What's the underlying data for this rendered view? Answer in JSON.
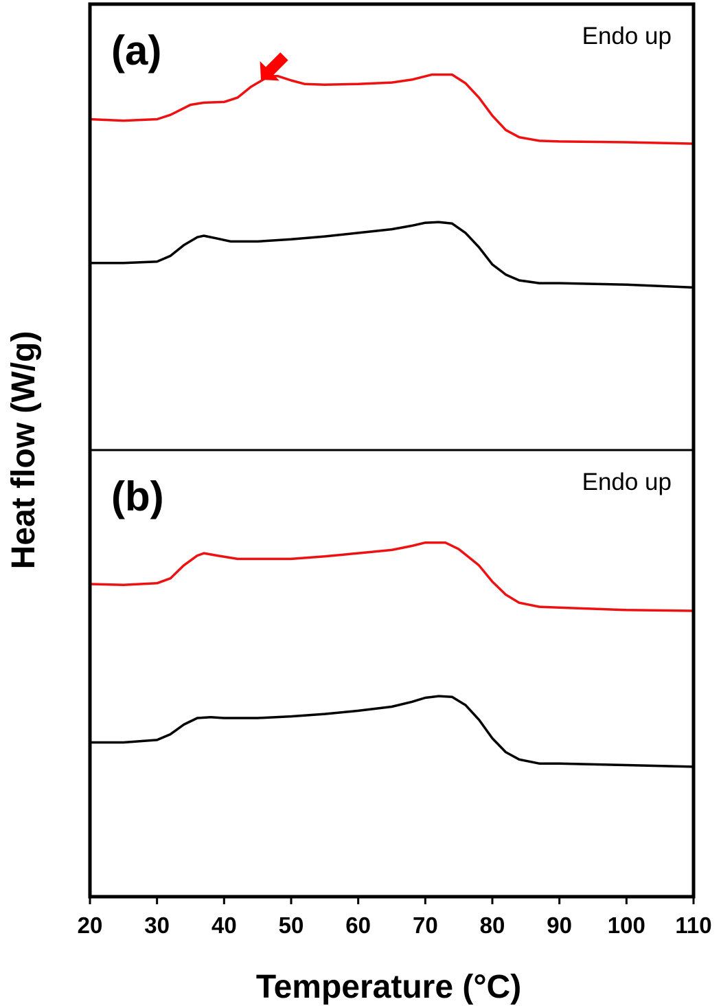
{
  "chart_data": {
    "type": "line",
    "xlabel": "Temperature (°C)",
    "ylabel": "Heat flow (W/g)",
    "xlim": [
      20,
      110
    ],
    "x_ticks": [
      20,
      30,
      40,
      50,
      60,
      70,
      80,
      90,
      100,
      110
    ],
    "grid": false,
    "y_tick_labels": false,
    "colors": {
      "red": "#ee1111",
      "black": "#000000",
      "arrow": "#ff0000"
    },
    "panels": [
      {
        "label": "(a)",
        "annotation": "Endo up",
        "ylim": [
          -2.6,
          3.6
        ],
        "arrow": {
          "x": 45.5,
          "y": 2.55
        },
        "series": [
          {
            "color": "red",
            "points": [
              [
                20,
                2.0
              ],
              [
                25,
                1.98
              ],
              [
                30,
                2.0
              ],
              [
                32,
                2.06
              ],
              [
                35,
                2.2
              ],
              [
                37,
                2.23
              ],
              [
                40,
                2.24
              ],
              [
                42,
                2.3
              ],
              [
                44,
                2.45
              ],
              [
                46,
                2.56
              ],
              [
                47,
                2.6
              ],
              [
                48,
                2.6
              ],
              [
                50,
                2.54
              ],
              [
                52,
                2.49
              ],
              [
                55,
                2.48
              ],
              [
                60,
                2.49
              ],
              [
                65,
                2.51
              ],
              [
                68,
                2.55
              ],
              [
                71,
                2.62
              ],
              [
                74,
                2.62
              ],
              [
                76,
                2.5
              ],
              [
                78,
                2.3
              ],
              [
                80,
                2.05
              ],
              [
                82,
                1.85
              ],
              [
                84,
                1.75
              ],
              [
                87,
                1.7
              ],
              [
                90,
                1.69
              ],
              [
                100,
                1.68
              ],
              [
                110,
                1.66
              ]
            ]
          },
          {
            "color": "black",
            "points": [
              [
                20,
                0.0
              ],
              [
                25,
                0.0
              ],
              [
                30,
                0.02
              ],
              [
                32,
                0.1
              ],
              [
                34,
                0.25
              ],
              [
                36,
                0.36
              ],
              [
                37,
                0.38
              ],
              [
                39,
                0.34
              ],
              [
                41,
                0.3
              ],
              [
                45,
                0.3
              ],
              [
                50,
                0.33
              ],
              [
                55,
                0.37
              ],
              [
                60,
                0.42
              ],
              [
                65,
                0.47
              ],
              [
                68,
                0.52
              ],
              [
                70,
                0.56
              ],
              [
                72,
                0.57
              ],
              [
                74,
                0.55
              ],
              [
                76,
                0.42
              ],
              [
                78,
                0.22
              ],
              [
                80,
                -0.02
              ],
              [
                82,
                -0.16
              ],
              [
                84,
                -0.24
              ],
              [
                87,
                -0.28
              ],
              [
                90,
                -0.28
              ],
              [
                100,
                -0.3
              ],
              [
                110,
                -0.34
              ]
            ]
          }
        ]
      },
      {
        "label": "(b)",
        "annotation": "Endo up",
        "ylim": [
          -1.9,
          3.6
        ],
        "series": [
          {
            "color": "red",
            "points": [
              [
                20,
                1.95
              ],
              [
                25,
                1.94
              ],
              [
                30,
                1.96
              ],
              [
                32,
                2.02
              ],
              [
                34,
                2.18
              ],
              [
                36,
                2.3
              ],
              [
                37,
                2.33
              ],
              [
                39,
                2.3
              ],
              [
                42,
                2.26
              ],
              [
                50,
                2.26
              ],
              [
                55,
                2.29
              ],
              [
                60,
                2.33
              ],
              [
                65,
                2.37
              ],
              [
                68,
                2.42
              ],
              [
                70,
                2.46
              ],
              [
                73,
                2.46
              ],
              [
                75,
                2.38
              ],
              [
                78,
                2.18
              ],
              [
                80,
                1.98
              ],
              [
                82,
                1.82
              ],
              [
                84,
                1.72
              ],
              [
                87,
                1.67
              ],
              [
                90,
                1.66
              ],
              [
                100,
                1.63
              ],
              [
                110,
                1.62
              ]
            ]
          },
          {
            "color": "black",
            "points": [
              [
                20,
                0.0
              ],
              [
                25,
                0.0
              ],
              [
                30,
                0.03
              ],
              [
                32,
                0.1
              ],
              [
                34,
                0.22
              ],
              [
                36,
                0.3
              ],
              [
                38,
                0.31
              ],
              [
                40,
                0.3
              ],
              [
                45,
                0.3
              ],
              [
                50,
                0.32
              ],
              [
                55,
                0.35
              ],
              [
                60,
                0.39
              ],
              [
                65,
                0.44
              ],
              [
                68,
                0.5
              ],
              [
                70,
                0.55
              ],
              [
                72,
                0.57
              ],
              [
                74,
                0.56
              ],
              [
                76,
                0.46
              ],
              [
                78,
                0.28
              ],
              [
                80,
                0.05
              ],
              [
                82,
                -0.12
              ],
              [
                84,
                -0.21
              ],
              [
                87,
                -0.26
              ],
              [
                90,
                -0.26
              ],
              [
                100,
                -0.28
              ],
              [
                110,
                -0.3
              ]
            ]
          }
        ]
      }
    ]
  }
}
